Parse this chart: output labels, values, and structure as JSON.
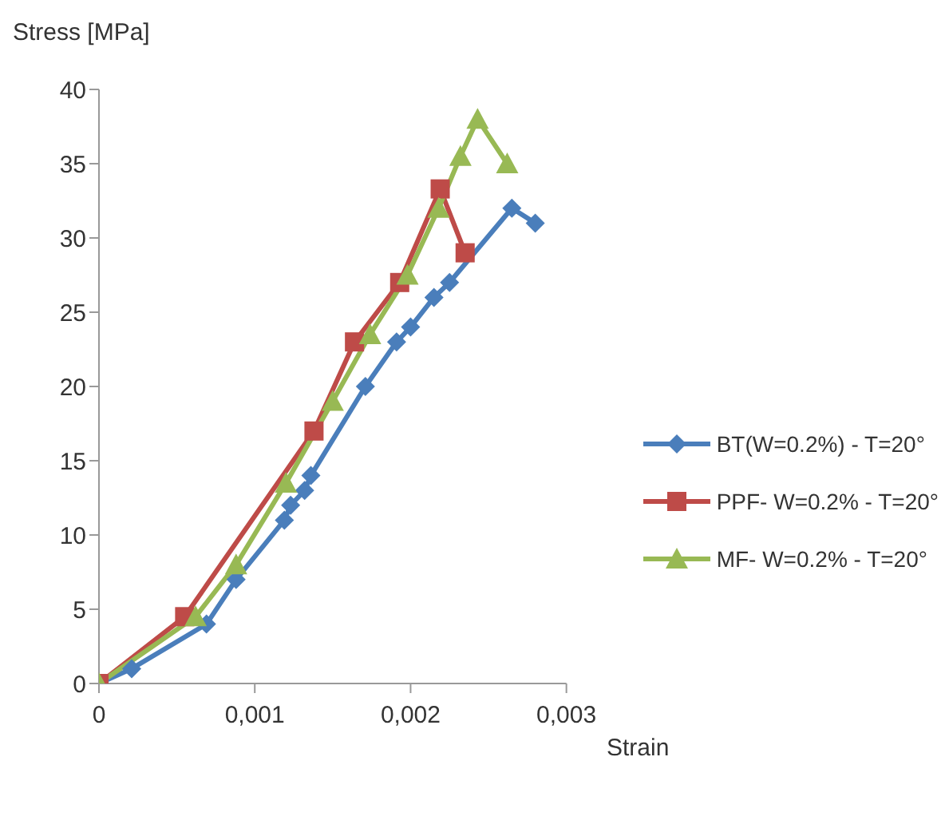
{
  "chart_data": {
    "type": "line",
    "xlabel": "Strain",
    "ylabel": "Stress [MPa]",
    "xlim": [
      0,
      0.003
    ],
    "xticks": [
      0,
      {
        "value": 0.001,
        "label": "0,001"
      },
      {
        "value": 0.002,
        "label": "0,002"
      },
      {
        "value": 0.003,
        "label": "0,003"
      }
    ],
    "ylim": [
      0,
      40
    ],
    "yticks": [
      0,
      5,
      10,
      15,
      20,
      25,
      30,
      35,
      40
    ],
    "grid": false,
    "legend": "right",
    "series": [
      {
        "name": "BT(W=0.2%) - T=20°",
        "color": "#4a7ebb",
        "marker": "diamond",
        "x": [
          0,
          0.00021,
          0.00069,
          0.00088,
          0.00119,
          0.00123,
          0.00132,
          0.00136,
          0.00171,
          0.00191,
          0.002,
          0.00215,
          0.00225,
          0.00265,
          0.0028
        ],
        "values": [
          0,
          1,
          4,
          7,
          11,
          12,
          13,
          14,
          20,
          23,
          24,
          26,
          27,
          32,
          31
        ]
      },
      {
        "name": "PPF- W=0.2% - T=20°",
        "color": "#be4b48",
        "marker": "square",
        "x": [
          0,
          0.00055,
          0.00138,
          0.00164,
          0.00193,
          0.00219,
          0.00235
        ],
        "values": [
          0,
          4.5,
          17,
          23,
          27,
          33.3,
          29
        ]
      },
      {
        "name": "MF- W=0.2% - T=20°",
        "color": "#98b954",
        "marker": "triangle",
        "x": [
          0,
          0.00062,
          0.00088,
          0.0012,
          0.0015,
          0.00174,
          0.00198,
          0.00218,
          0.00232,
          0.00243,
          0.00262
        ],
        "values": [
          0,
          4.5,
          8,
          13.5,
          19,
          23.5,
          27.5,
          32,
          35.5,
          38,
          35
        ]
      }
    ]
  }
}
